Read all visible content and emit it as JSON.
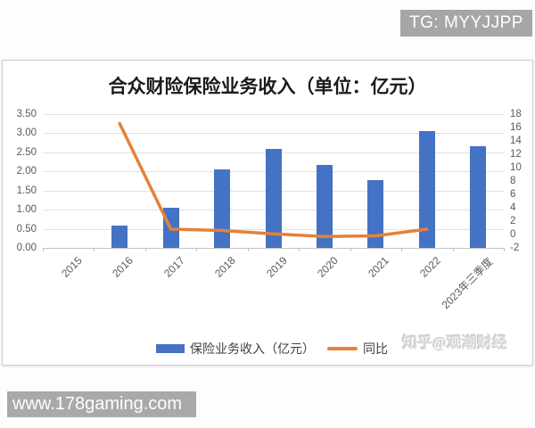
{
  "overlay": {
    "telegram_badge": "TG: MYYJJPP",
    "url_bar": "www.178gaming.com",
    "watermark": "知乎@观潮财经"
  },
  "chart_data": {
    "type": "bar",
    "subtype": "bar+line combo, dual axis",
    "title": "合众财险保险业务收入（单位：亿元）",
    "categories": [
      "2015",
      "2016",
      "2017",
      "2018",
      "2019",
      "2020",
      "2021",
      "2022",
      "2023年三季度"
    ],
    "series": [
      {
        "name": "保险业务收入（亿元）",
        "type": "bar",
        "axis": "left",
        "color": "#4472C4",
        "values": [
          null,
          0.58,
          1.05,
          2.05,
          2.6,
          2.17,
          1.77,
          3.05,
          2.65
        ]
      },
      {
        "name": "同比",
        "type": "line",
        "axis": "right",
        "color": "#E58138",
        "values": [
          null,
          16.6,
          0.8,
          0.6,
          0.1,
          -0.3,
          -0.2,
          0.8,
          null
        ]
      }
    ],
    "left_axis": {
      "min": 0,
      "max": 3.5,
      "ticks": [
        "3.50",
        "3.00",
        "2.50",
        "2.00",
        "1.50",
        "1.00",
        "0.50",
        "0.00"
      ]
    },
    "right_axis": {
      "min": -2,
      "max": 18,
      "ticks": [
        "18",
        "16",
        "14",
        "12",
        "10",
        "8",
        "6",
        "4",
        "2",
        "0",
        "-2"
      ]
    },
    "legend": [
      {
        "label": "保险业务收入（亿元）",
        "marker": "square",
        "color": "#4472C4"
      },
      {
        "label": "同比",
        "marker": "line",
        "color": "#E58138"
      }
    ],
    "grid": "horizontal gridlines on, legend bottom"
  }
}
